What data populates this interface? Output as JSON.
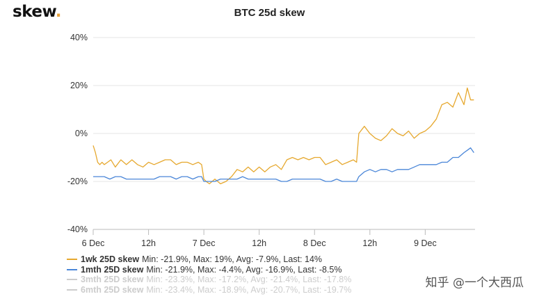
{
  "brand": {
    "name": "skew",
    "dot": "."
  },
  "chart_data": {
    "type": "line",
    "title": "BTC 25d skew",
    "ylim": [
      -40,
      40
    ],
    "yticks": [
      40,
      20,
      0,
      -20,
      -40
    ],
    "ytick_labels": [
      "40%",
      "20%",
      "0%",
      "-20%",
      "-40%"
    ],
    "xlim": [
      0,
      3.45
    ],
    "xticks": [
      0,
      0.5,
      1,
      1.5,
      2,
      2.5,
      3
    ],
    "xtick_labels": [
      "6 Dec",
      "12h",
      "7 Dec",
      "12h",
      "8 Dec",
      "12h",
      "9 Dec"
    ],
    "series": [
      {
        "name": "1wk 25D skew",
        "stats": "Min: -21.9%, Max: 19%, Avg: -7.9%, Last: 14%",
        "color": "#e6a82e",
        "visible": true,
        "x": [
          0,
          0.02,
          0.04,
          0.06,
          0.08,
          0.1,
          0.13,
          0.16,
          0.2,
          0.25,
          0.3,
          0.35,
          0.4,
          0.45,
          0.5,
          0.55,
          0.6,
          0.65,
          0.7,
          0.75,
          0.8,
          0.85,
          0.9,
          0.95,
          0.98,
          1.0,
          1.02,
          1.05,
          1.1,
          1.15,
          1.2,
          1.25,
          1.3,
          1.35,
          1.4,
          1.45,
          1.5,
          1.55,
          1.6,
          1.65,
          1.7,
          1.75,
          1.8,
          1.85,
          1.9,
          1.95,
          2.0,
          2.05,
          2.1,
          2.15,
          2.2,
          2.25,
          2.3,
          2.35,
          2.38,
          2.4,
          2.45,
          2.5,
          2.55,
          2.6,
          2.65,
          2.7,
          2.75,
          2.8,
          2.85,
          2.9,
          2.95,
          3.0,
          3.05,
          3.1,
          3.15,
          3.2,
          3.25,
          3.3,
          3.35,
          3.38,
          3.41,
          3.44
        ],
        "y": [
          -5,
          -8,
          -12,
          -13,
          -12,
          -13,
          -12,
          -11,
          -14,
          -11,
          -13,
          -11,
          -13,
          -14,
          -12,
          -13,
          -12,
          -11,
          -11,
          -13,
          -12,
          -12,
          -13,
          -12,
          -13,
          -19,
          -20,
          -21,
          -19,
          -21,
          -20,
          -18,
          -15,
          -16,
          -14,
          -16,
          -14,
          -16,
          -14,
          -13,
          -15,
          -11,
          -10,
          -11,
          -10,
          -11,
          -10,
          -10,
          -13,
          -12,
          -11,
          -13,
          -12,
          -11,
          -12,
          0,
          3,
          0,
          -2,
          -3,
          -1,
          2,
          0,
          -1,
          1,
          -2,
          0,
          1,
          3,
          6,
          12,
          13,
          11,
          17,
          12,
          19,
          14,
          14
        ]
      },
      {
        "name": "1mth 25D skew",
        "stats": "Min: -21.9%, Max: -4.4%, Avg: -16.9%, Last: -8.5%",
        "color": "#4a86d8",
        "visible": true,
        "x": [
          0,
          0.05,
          0.1,
          0.15,
          0.2,
          0.25,
          0.3,
          0.35,
          0.4,
          0.45,
          0.5,
          0.55,
          0.6,
          0.65,
          0.7,
          0.75,
          0.8,
          0.85,
          0.9,
          0.95,
          0.98,
          1.0,
          1.05,
          1.1,
          1.15,
          1.2,
          1.25,
          1.3,
          1.35,
          1.4,
          1.45,
          1.5,
          1.55,
          1.6,
          1.65,
          1.7,
          1.75,
          1.8,
          1.85,
          1.9,
          1.95,
          2.0,
          2.05,
          2.1,
          2.15,
          2.2,
          2.25,
          2.3,
          2.35,
          2.38,
          2.4,
          2.45,
          2.5,
          2.55,
          2.6,
          2.65,
          2.7,
          2.75,
          2.8,
          2.85,
          2.9,
          2.95,
          3.0,
          3.05,
          3.1,
          3.15,
          3.2,
          3.25,
          3.3,
          3.35,
          3.38,
          3.41,
          3.44
        ],
        "y": [
          -18,
          -18,
          -18,
          -19,
          -18,
          -18,
          -19,
          -19,
          -19,
          -19,
          -19,
          -19,
          -18,
          -18,
          -18,
          -19,
          -18,
          -18,
          -19,
          -18,
          -18,
          -20,
          -20,
          -20,
          -19,
          -19,
          -19,
          -19,
          -18,
          -19,
          -19,
          -19,
          -19,
          -19,
          -19,
          -20,
          -20,
          -19,
          -19,
          -19,
          -19,
          -19,
          -19,
          -20,
          -20,
          -19,
          -20,
          -20,
          -20,
          -20,
          -18,
          -16,
          -15,
          -16,
          -15,
          -15,
          -16,
          -15,
          -15,
          -15,
          -14,
          -13,
          -13,
          -13,
          -13,
          -12,
          -12,
          -10,
          -10,
          -8,
          -7,
          -6,
          -8
        ]
      },
      {
        "name": "3mth 25D skew",
        "stats": "Min: -23.3%, Max: -17.2%, Avg: -21.4%, Last: -17.8%",
        "color": "#cccccc",
        "visible": false
      },
      {
        "name": "6mth 25D skew",
        "stats": "Min: -23.4%, Max: -18.9%, Avg: -20.7%, Last: -19.7%",
        "color": "#cccccc",
        "visible": false
      }
    ]
  },
  "watermark": "知乎 @一个大西瓜"
}
